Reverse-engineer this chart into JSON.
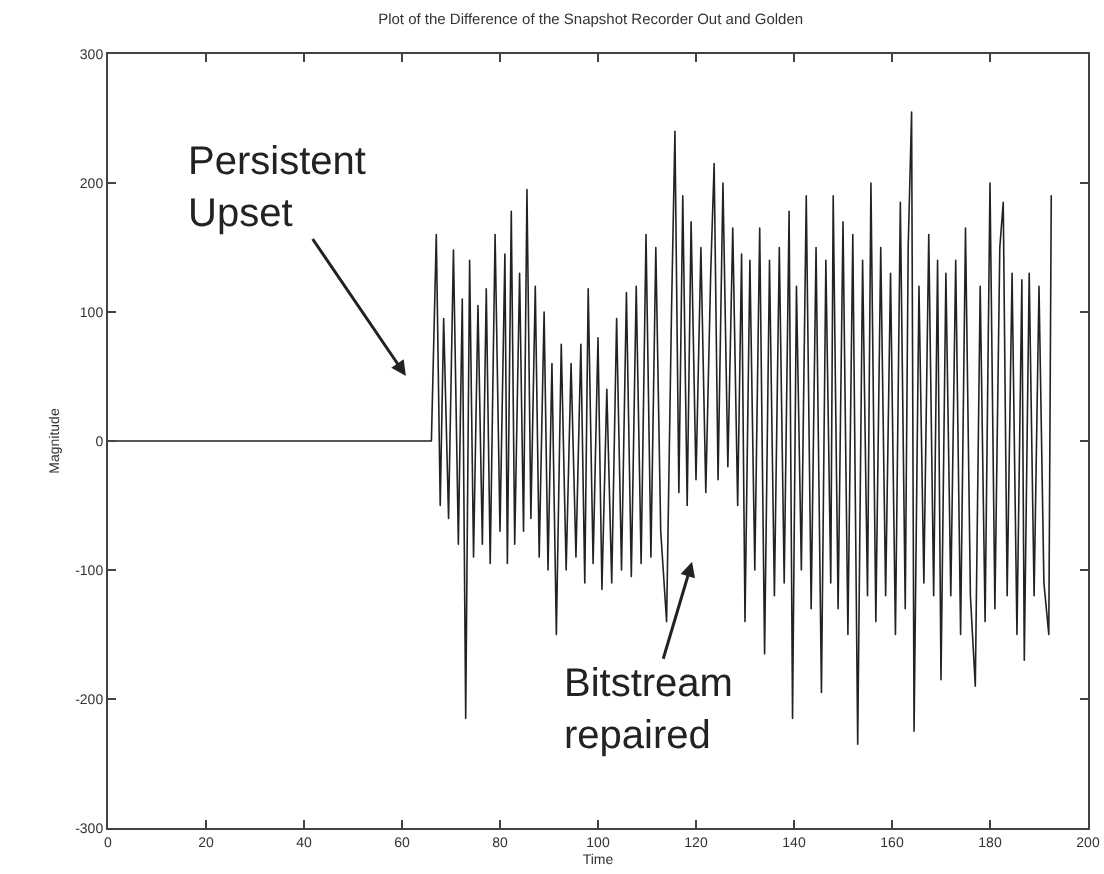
{
  "chart_data": {
    "type": "line",
    "title": "Plot of the Difference of the Snapshot Recorder Out and Golden",
    "xlabel": "Time",
    "ylabel": "Magnitude",
    "xlim": [
      0,
      200
    ],
    "xticks": [
      0,
      20,
      40,
      60,
      80,
      100,
      120,
      140,
      160,
      180,
      200
    ],
    "ylim": [
      -300,
      300
    ],
    "yticks": [
      -300,
      -200,
      -100,
      0,
      100,
      200,
      300
    ],
    "grid": false,
    "series": [
      {
        "color": "#222222",
        "x": [
          0,
          66,
          67,
          67.8,
          68.5,
          69.5,
          70.5,
          71.5,
          72.3,
          73,
          73.8,
          74.6,
          75.5,
          76.4,
          77.2,
          78,
          79,
          80,
          81,
          81.5,
          82.3,
          83,
          84,
          84.8,
          85.5,
          86.3,
          87.2,
          88,
          89,
          89.8,
          90.6,
          91.5,
          92.5,
          93.5,
          94.5,
          95.5,
          96.5,
          97.3,
          98,
          99,
          100,
          100.8,
          101.8,
          102.8,
          103.8,
          104.8,
          105.8,
          106.8,
          107.8,
          108.8,
          109.8,
          110.8,
          111.8,
          112.8,
          114,
          115,
          115.7,
          116.5,
          117.3,
          118.2,
          119,
          120,
          121,
          122,
          123,
          123.7,
          124.5,
          125.5,
          126.5,
          127.5,
          128.5,
          129.3,
          130,
          131,
          132,
          133,
          134,
          135,
          136,
          137,
          138,
          139,
          139.7,
          140.5,
          141.5,
          142.5,
          143.5,
          144.5,
          145.6,
          146.5,
          147.5,
          148,
          149,
          150,
          151,
          152,
          153,
          154,
          155,
          155.7,
          156.7,
          157.7,
          158.7,
          159.7,
          160.7,
          161.7,
          162.7,
          163.3,
          164,
          164.5,
          165.5,
          166.5,
          167.5,
          168.5,
          169.3,
          170,
          171,
          172,
          173,
          174,
          175,
          176,
          177,
          178,
          179,
          180,
          181,
          182,
          182.7,
          183.5,
          184.5,
          185.5,
          186.5,
          187,
          188,
          189,
          190,
          191,
          192,
          192.5
        ],
        "values": [
          0,
          0,
          160,
          -50,
          95,
          -60,
          148,
          -80,
          110,
          -215,
          140,
          -90,
          105,
          -80,
          118,
          -95,
          160,
          -70,
          145,
          -95,
          178,
          -80,
          130,
          -70,
          195,
          -60,
          120,
          -90,
          100,
          -100,
          60,
          -150,
          75,
          -100,
          60,
          -90,
          75,
          -110,
          118,
          -95,
          80,
          -115,
          40,
          -110,
          95,
          -100,
          115,
          -105,
          120,
          -95,
          160,
          -90,
          150,
          -70,
          -140,
          100,
          240,
          -40,
          190,
          -50,
          170,
          -30,
          150,
          -40,
          130,
          215,
          -30,
          200,
          -20,
          165,
          -50,
          145,
          -140,
          140,
          -100,
          165,
          -165,
          140,
          -120,
          150,
          -110,
          178,
          -215,
          120,
          -100,
          190,
          -130,
          150,
          -195,
          140,
          -110,
          190,
          -130,
          170,
          -150,
          160,
          -235,
          140,
          -120,
          200,
          -140,
          150,
          -120,
          130,
          -150,
          185,
          -130,
          150,
          255,
          -225,
          120,
          -110,
          160,
          -120,
          140,
          -185,
          130,
          -120,
          140,
          -150,
          165,
          -120,
          -190,
          120,
          -140,
          200,
          -130,
          150,
          185,
          -120,
          130,
          -150,
          125,
          -170,
          130,
          -120,
          120,
          -110,
          -150,
          190
        ]
      }
    ],
    "annotations": [
      "Persistent Upset",
      "Bitstream repaired"
    ]
  }
}
